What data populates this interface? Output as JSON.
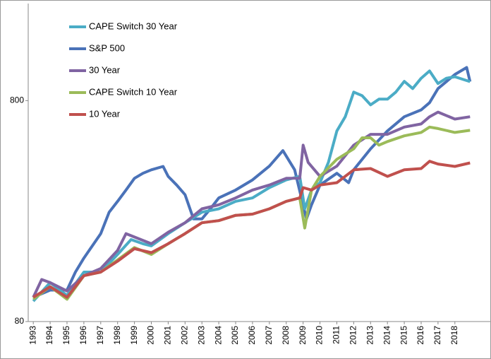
{
  "chart_data": {
    "type": "line",
    "log_y": true,
    "xlim": [
      1992.7,
      2020.1
    ],
    "xticks": [
      1993,
      1994,
      1995,
      1996,
      1997,
      1998,
      1999,
      2000,
      2001,
      2002,
      2003,
      2004,
      2005,
      2006,
      2007,
      2008,
      2009,
      2010,
      2011,
      2012,
      2013,
      2014,
      2015,
      2016,
      2017,
      2018
    ],
    "ylim": [
      80,
      2200
    ],
    "yticks": [
      80,
      800
    ],
    "legend": "top-left",
    "series": [
      {
        "name": "CAPE Switch 30 Year",
        "color": "#4bacc6",
        "x": [
          1993,
          1994,
          1995,
          1996,
          1997,
          1998,
          1998.8,
          1999.5,
          2000,
          2001,
          2002,
          2003,
          2004,
          2005,
          2006,
          2007,
          2008,
          2008.8,
          2009.1,
          2009.5,
          2010,
          2010.5,
          2011,
          2011.5,
          2012,
          2012.5,
          2013,
          2013.5,
          2014,
          2014.5,
          2015,
          2015.5,
          2016,
          2016.5,
          2017,
          2017.5,
          2018,
          2018.9
        ],
        "values": [
          99,
          120,
          105,
          134,
          134,
          161,
          188,
          180,
          176,
          200,
          224,
          250,
          259,
          280,
          290,
          323,
          350,
          363,
          259,
          315,
          340,
          420,
          583,
          676,
          874,
          842,
          765,
          812,
          812,
          874,
          978,
          907,
          1010,
          1090,
          956,
          1010,
          1026,
          975
        ]
      },
      {
        "name": "S&P 500",
        "color": "#4a72b8",
        "x": [
          1993,
          1994,
          1995,
          1995.5,
          1996,
          1997,
          1997.5,
          1998,
          1998.5,
          1999,
          1999.5,
          2000,
          2000.7,
          2001,
          2001.5,
          2002,
          2002.5,
          2003,
          2003.5,
          2004,
          2005,
          2006,
          2007,
          2007.8,
          2008.5,
          2009.2,
          2009.5,
          2010,
          2011,
          2011.7,
          2012,
          2013,
          2014,
          2015,
          2016,
          2016.5,
          2017,
          2018,
          2018.7,
          2018.9
        ],
        "values": [
          103,
          111,
          111,
          134,
          155,
          200,
          250,
          280,
          315,
          356,
          375,
          389,
          403,
          363,
          332,
          300,
          233,
          233,
          259,
          290,
          315,
          350,
          404,
          475,
          389,
          233,
          270,
          332,
          375,
          340,
          389,
          484,
          583,
          676,
          726,
          783,
          907,
          1050,
          1130,
          975
        ]
      },
      {
        "name": "30 Year",
        "color": "#8064a2",
        "x": [
          1993,
          1993.5,
          1994,
          1995,
          1996,
          1997,
          1998,
          1998.5,
          1999,
          2000,
          2001,
          2002,
          2003,
          2004,
          2005,
          2006,
          2007,
          2008,
          2008.8,
          2009,
          2009.3,
          2010,
          2011,
          2012,
          2013,
          2014,
          2015,
          2016,
          2016.5,
          2017,
          2018,
          2018.9
        ],
        "values": [
          103,
          124,
          120,
          110,
          129,
          139,
          168,
          200,
          193,
          180,
          203,
          224,
          259,
          270,
          290,
          315,
          332,
          356,
          356,
          503,
          420,
          363,
          404,
          503,
          563,
          563,
          607,
          627,
          676,
          710,
          660,
          676
        ]
      },
      {
        "name": "CAPE Switch 10 Year",
        "color": "#9bbb59",
        "x": [
          1993,
          1994,
          1995,
          1996,
          1997,
          1998,
          1999,
          2000,
          2001,
          2002,
          2003,
          2004,
          2005,
          2006,
          2007,
          2008,
          2008.8,
          2009.1,
          2009.5,
          2010,
          2011,
          2012,
          2012.5,
          2013,
          2013.5,
          2014,
          2015,
          2016,
          2016.5,
          2017,
          2018,
          2018.9
        ],
        "values": [
          101,
          115,
          101,
          129,
          134,
          152,
          173,
          161,
          180,
          200,
          224,
          229,
          242,
          245,
          259,
          280,
          290,
          212,
          315,
          363,
          434,
          484,
          543,
          543,
          503,
          522,
          554,
          574,
          607,
          598,
          574,
          587
        ]
      },
      {
        "name": "10 Year",
        "color": "#c0504d",
        "x": [
          1993,
          1994,
          1995,
          1996,
          1997,
          1998,
          1999,
          2000,
          2001,
          2002,
          2003,
          2004,
          2005,
          2006,
          2007,
          2008,
          2008.8,
          2009,
          2009.5,
          2010,
          2011,
          2012,
          2013,
          2014,
          2015,
          2016,
          2016.5,
          2017,
          2018,
          2018.9
        ],
        "values": [
          103,
          115,
          103,
          129,
          134,
          150,
          171,
          164,
          180,
          200,
          224,
          229,
          242,
          245,
          259,
          280,
          290,
          323,
          315,
          332,
          340,
          389,
          394,
          363,
          389,
          394,
          425,
          413,
          403,
          418
        ]
      }
    ]
  }
}
